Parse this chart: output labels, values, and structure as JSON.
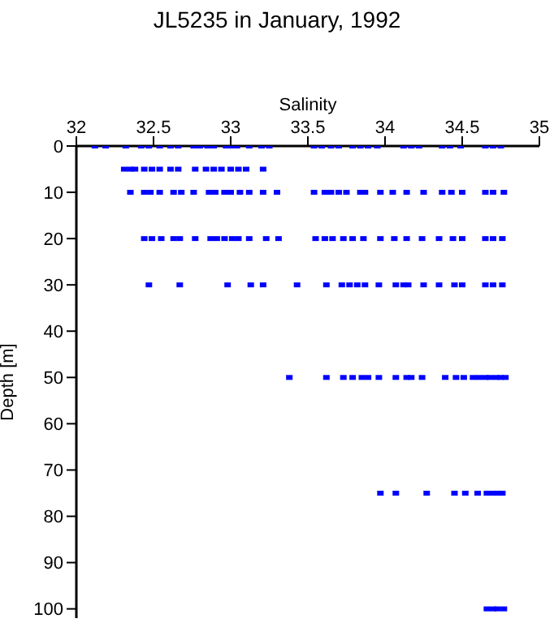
{
  "chart_data": {
    "type": "scatter",
    "title": "JL5235 in January, 1992",
    "xlabel": "Salinity",
    "ylabel": "Depth [m]",
    "xlim": [
      32,
      35
    ],
    "xticks": [
      32,
      32.5,
      33,
      33.5,
      34,
      34.5,
      35
    ],
    "ylim": [
      102,
      0
    ],
    "yticks": [
      0,
      10,
      20,
      30,
      40,
      50,
      60,
      70,
      80,
      90,
      100
    ],
    "grid": false,
    "legend": false,
    "marker": "square",
    "series": [
      {
        "color": "#0000ff",
        "x": [
          32.12,
          32.19,
          32.32,
          32.42,
          32.47,
          32.54,
          32.61,
          32.66,
          32.76,
          32.8,
          32.85,
          32.89,
          32.97,
          33.0,
          33.04,
          33.12,
          33.2,
          33.25,
          33.54,
          33.59,
          33.65,
          33.7,
          33.79,
          33.84,
          33.89,
          33.95,
          34.12,
          34.17,
          34.22,
          34.37,
          34.42,
          34.49,
          34.65,
          34.7,
          34.75
        ],
        "values": [
          0,
          0,
          0,
          0,
          0,
          0,
          0,
          0,
          0,
          0,
          0,
          0,
          0,
          0,
          0,
          0,
          0,
          0,
          0,
          0,
          0,
          0,
          0,
          0,
          0,
          0,
          0,
          0,
          0,
          0,
          0,
          0,
          0,
          0,
          0
        ]
      },
      {
        "color": "#0000ff",
        "x": [
          32.31,
          32.35,
          32.38,
          32.44,
          32.49,
          32.54,
          32.61,
          32.66,
          32.77,
          32.84,
          32.89,
          32.94,
          33.0,
          33.05,
          33.1,
          33.21
        ],
        "values": [
          5,
          5,
          5,
          5,
          5,
          5,
          5,
          5,
          5,
          5,
          5,
          5,
          5,
          5,
          5,
          5
        ]
      },
      {
        "color": "#0000ff",
        "x": [
          32.35,
          32.44,
          32.48,
          32.54,
          32.63,
          32.68,
          32.76,
          32.86,
          32.9,
          32.96,
          33.0,
          33.06,
          33.12,
          33.21,
          33.3,
          33.54,
          33.61,
          33.65,
          33.7,
          33.75,
          33.84,
          33.87,
          33.97,
          34.05,
          34.14,
          34.25,
          34.37,
          34.43,
          34.5,
          34.65,
          34.7,
          34.77
        ],
        "values": [
          10,
          10,
          10,
          10,
          10,
          10,
          10,
          10,
          10,
          10,
          10,
          10,
          10,
          10,
          10,
          10,
          10,
          10,
          10,
          10,
          10,
          10,
          10,
          10,
          10,
          10,
          10,
          10,
          10,
          10,
          10,
          10
        ]
      },
      {
        "color": "#0000ff",
        "x": [
          32.44,
          32.49,
          32.55,
          32.63,
          32.67,
          32.77,
          32.87,
          32.91,
          32.96,
          33.01,
          33.05,
          33.12,
          33.23,
          33.31,
          33.55,
          33.61,
          33.66,
          33.73,
          33.79,
          33.86,
          33.97,
          34.06,
          34.14,
          34.24,
          34.35,
          34.44,
          34.5,
          34.65,
          34.7,
          34.76
        ],
        "values": [
          20,
          20,
          20,
          20,
          20,
          20,
          20,
          20,
          20,
          20,
          20,
          20,
          20,
          20,
          20,
          20,
          20,
          20,
          20,
          20,
          20,
          20,
          20,
          20,
          20,
          20,
          20,
          20,
          20,
          20
        ]
      },
      {
        "color": "#0000ff",
        "x": [
          32.47,
          32.67,
          32.98,
          33.13,
          33.21,
          33.43,
          33.62,
          33.72,
          33.77,
          33.82,
          33.87,
          33.96,
          34.07,
          34.12,
          34.15,
          34.25,
          34.35,
          34.45,
          34.5,
          34.65,
          34.7,
          34.76
        ],
        "values": [
          30,
          30,
          30,
          30,
          30,
          30,
          30,
          30,
          30,
          30,
          30,
          30,
          30,
          30,
          30,
          30,
          30,
          30,
          30,
          30,
          30,
          30
        ]
      },
      {
        "color": "#0000ff",
        "x": [
          33.38,
          33.62,
          33.73,
          33.79,
          33.85,
          33.89,
          33.96,
          34.07,
          34.14,
          34.17,
          34.24,
          34.39,
          34.46,
          34.51,
          34.57,
          34.61,
          34.65,
          34.68,
          34.72,
          34.75,
          34.78
        ],
        "values": [
          50,
          50,
          50,
          50,
          50,
          50,
          50,
          50,
          50,
          50,
          50,
          50,
          50,
          50,
          50,
          50,
          50,
          50,
          50,
          50,
          50
        ]
      },
      {
        "color": "#0000ff",
        "x": [
          33.97,
          34.07,
          34.27,
          34.45,
          34.52,
          34.6,
          34.66,
          34.7,
          34.73,
          34.76
        ],
        "values": [
          75,
          75,
          75,
          75,
          75,
          75,
          75,
          75,
          75,
          75
        ]
      },
      {
        "color": "#0000ff",
        "x": [
          34.66,
          34.7,
          34.73,
          34.77
        ],
        "values": [
          100,
          100,
          100,
          100
        ]
      }
    ]
  }
}
